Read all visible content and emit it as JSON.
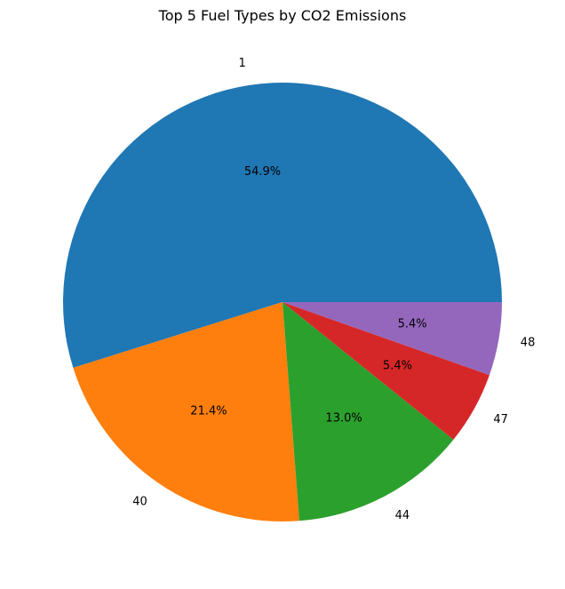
{
  "chart_data": {
    "type": "pie",
    "title": "Top 5 Fuel Types by CO2 Emissions",
    "categories": [
      "1",
      "40",
      "44",
      "47",
      "48"
    ],
    "values": [
      54.9,
      21.4,
      13.0,
      5.4,
      5.4
    ],
    "percent_labels": [
      "54.9%",
      "21.4%",
      "13.0%",
      "5.4%",
      "5.4%"
    ],
    "colors": [
      "#1f77b4",
      "#ff7f0e",
      "#2ca02c",
      "#d62728",
      "#9467bd"
    ],
    "start_angle_deg": 0,
    "direction": "counterclockwise",
    "legend": "none"
  }
}
